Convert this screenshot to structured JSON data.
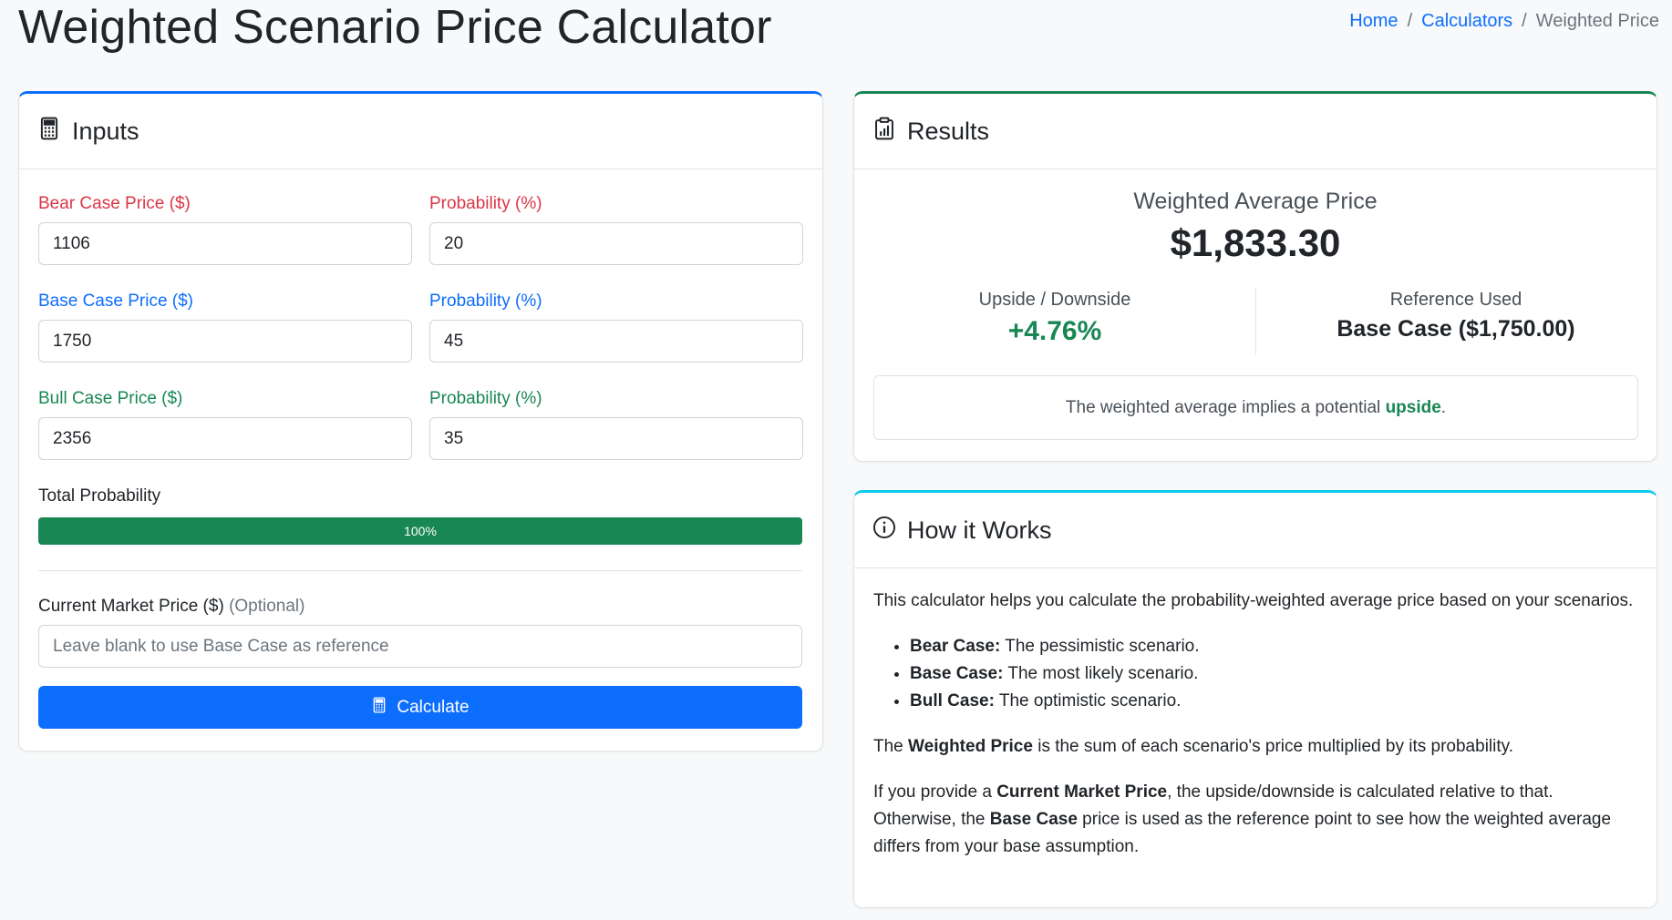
{
  "page": {
    "title": "Weighted Scenario Price Calculator",
    "breadcrumb": {
      "home": "Home",
      "calculators": "Calculators",
      "current": "Weighted Price",
      "sep": "/"
    }
  },
  "inputs": {
    "header": "Inputs",
    "bear_label": "Bear Case Price ($)",
    "bear_value": "1106",
    "bear_prob_label": "Probability (%)",
    "bear_prob_value": "20",
    "base_label": "Base Case Price ($)",
    "base_value": "1750",
    "base_prob_label": "Probability (%)",
    "base_prob_value": "45",
    "bull_label": "Bull Case Price ($)",
    "bull_value": "2356",
    "bull_prob_label": "Probability (%)",
    "bull_prob_value": "35",
    "total_label": "Total Probability",
    "total_value": "100%",
    "total_fraction": 1.0,
    "market_label": "Current Market Price ($)",
    "market_optional": "(Optional)",
    "market_placeholder": "Leave blank to use Base Case as reference",
    "calculate_label": "Calculate"
  },
  "results": {
    "header": "Results",
    "wavg_label": "Weighted Average Price",
    "wavg_value": "$1,833.30",
    "updown_label": "Upside / Downside",
    "updown_value": "+4.76%",
    "ref_label": "Reference Used",
    "ref_value": "Base Case ($1,750.00)",
    "note_prefix": "The weighted average implies a potential ",
    "note_highlight": "upside",
    "note_suffix": "."
  },
  "how": {
    "header": "How it Works",
    "intro": "This calculator helps you calculate the probability-weighted average price based on your scenarios.",
    "items": [
      {
        "term": "Bear Case:",
        "desc": " The pessimistic scenario."
      },
      {
        "term": "Base Case:",
        "desc": " The most likely scenario."
      },
      {
        "term": "Bull Case:",
        "desc": " The optimistic scenario."
      }
    ],
    "p2_a": "The ",
    "p2_b": "Weighted Price",
    "p2_c": " is the sum of each scenario's price multiplied by its probability.",
    "p3_a": "If you provide a ",
    "p3_b": "Current Market Price",
    "p3_c": ", the upside/downside is calculated relative to that. Otherwise, the ",
    "p3_d": "Base Case",
    "p3_e": " price is used as the reference point to see how the weighted average differs from your base assumption."
  },
  "colors": {
    "primary": "#0d6efd",
    "success": "#198754",
    "danger": "#dc3545",
    "info": "#0dcaf0"
  },
  "icons": {
    "inputs": "calculator-icon",
    "results": "clipboard-chart-icon",
    "how": "info-circle-icon",
    "button": "calculator-icon"
  }
}
